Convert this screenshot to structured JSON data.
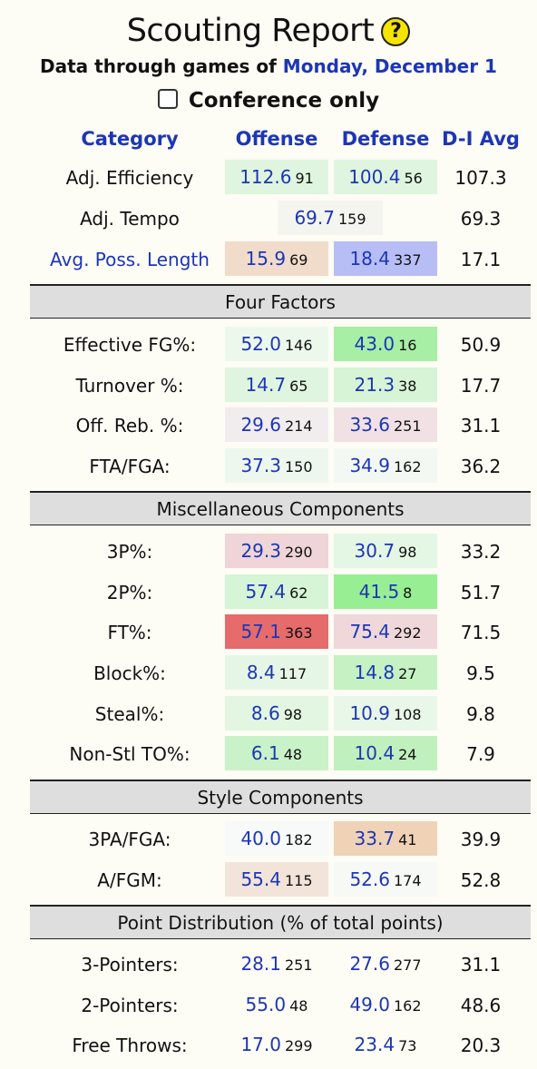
{
  "header": {
    "title": "Scouting Report",
    "help_label": "?",
    "subtitle_prefix": "Data through games of",
    "subtitle_date": "Monday, December 1",
    "conference_label": "Conference only"
  },
  "columns": {
    "category": "Category",
    "offense": "Offense",
    "defense": "Defense",
    "avg": "D-I Avg"
  },
  "top_rows": [
    {
      "label": "Adj. Efficiency",
      "off": "112.6",
      "off_rank": "91",
      "def": "100.4",
      "def_rank": "56",
      "avg": "107.3",
      "off_color": "#dff5df",
      "def_color": "#dff5df"
    },
    {
      "label": "Adj. Tempo",
      "tempo": "69.7",
      "tempo_rank": "159",
      "avg": "69.3",
      "tempo_color": "#f5f5f0"
    },
    {
      "label": "Avg. Poss. Length",
      "off": "15.9",
      "off_rank": "69",
      "def": "18.4",
      "def_rank": "337",
      "avg": "17.1",
      "off_color": "#f1dccb",
      "def_color": "#b7bdf5"
    }
  ],
  "sections": {
    "four_factors": "Four Factors",
    "misc": "Miscellaneous Components",
    "style": "Style Components",
    "points": "Point Distribution (% of total points)"
  },
  "four_factors": [
    {
      "label": "Effective FG%:",
      "off": "52.0",
      "off_rank": "146",
      "def": "43.0",
      "def_rank": "16",
      "avg": "50.9",
      "off_color": "#ecf8ec",
      "def_color": "#a7efa5"
    },
    {
      "label": "Turnover %:",
      "off": "14.7",
      "off_rank": "65",
      "def": "21.3",
      "def_rank": "38",
      "avg": "17.7",
      "off_color": "#dff5df",
      "def_color": "#d7f4d6"
    },
    {
      "label": "Off. Reb. %:",
      "off": "29.6",
      "off_rank": "214",
      "def": "33.6",
      "def_rank": "251",
      "avg": "31.1",
      "off_color": "#f1ecee",
      "def_color": "#f1e1e4"
    },
    {
      "label": "FTA/FGA:",
      "off": "37.3",
      "off_rank": "150",
      "def": "34.9",
      "def_rank": "162",
      "avg": "36.2",
      "off_color": "#edf7ee",
      "def_color": "#f3f8f3"
    }
  ],
  "misc": [
    {
      "label": "3P%:",
      "off": "29.3",
      "off_rank": "290",
      "def": "30.7",
      "def_rank": "98",
      "avg": "33.2",
      "off_color": "#efd5d7",
      "def_color": "#e4f6e4"
    },
    {
      "label": "2P%:",
      "off": "57.4",
      "off_rank": "62",
      "def": "41.5",
      "def_rank": "8",
      "avg": "51.7",
      "off_color": "#d6f4d6",
      "def_color": "#98ee92"
    },
    {
      "label": "FT%:",
      "off": "57.1",
      "off_rank": "363",
      "def": "75.4",
      "def_rank": "292",
      "avg": "71.5",
      "off_color": "#e66b6b",
      "def_color": "#efd7da"
    },
    {
      "label": "Block%:",
      "off": "8.4",
      "off_rank": "117",
      "def": "14.8",
      "def_rank": "27",
      "avg": "9.5",
      "off_color": "#e6f6e6",
      "def_color": "#c5f1c3"
    },
    {
      "label": "Steal%:",
      "off": "8.6",
      "off_rank": "98",
      "def": "10.9",
      "def_rank": "108",
      "avg": "9.8",
      "off_color": "#e2f6e2",
      "def_color": "#e9f7e9"
    },
    {
      "label": "Non-Stl TO%:",
      "off": "6.1",
      "off_rank": "48",
      "def": "10.4",
      "def_rank": "24",
      "avg": "7.9",
      "off_color": "#c9f2c8",
      "def_color": "#c0f0bd"
    }
  ],
  "style": [
    {
      "label": "3PA/FGA:",
      "off": "40.0",
      "off_rank": "182",
      "def": "33.7",
      "def_rank": "41",
      "avg": "39.9",
      "off_color": "#f7faf8",
      "def_color": "#f0d2b7"
    },
    {
      "label": "A/FGM:",
      "off": "55.4",
      "off_rank": "115",
      "def": "52.6",
      "def_rank": "174",
      "avg": "52.8",
      "off_color": "#f3e4da",
      "def_color": "#f7f9f6"
    }
  ],
  "points": [
    {
      "label": "3-Pointers:",
      "off": "28.1",
      "off_rank": "251",
      "def": "27.6",
      "def_rank": "277",
      "avg": "31.1"
    },
    {
      "label": "2-Pointers:",
      "off": "55.0",
      "off_rank": "48",
      "def": "49.0",
      "def_rank": "162",
      "avg": "48.6"
    },
    {
      "label": "Free Throws:",
      "off": "17.0",
      "off_rank": "299",
      "def": "23.4",
      "def_rank": "73",
      "avg": "20.3"
    }
  ]
}
